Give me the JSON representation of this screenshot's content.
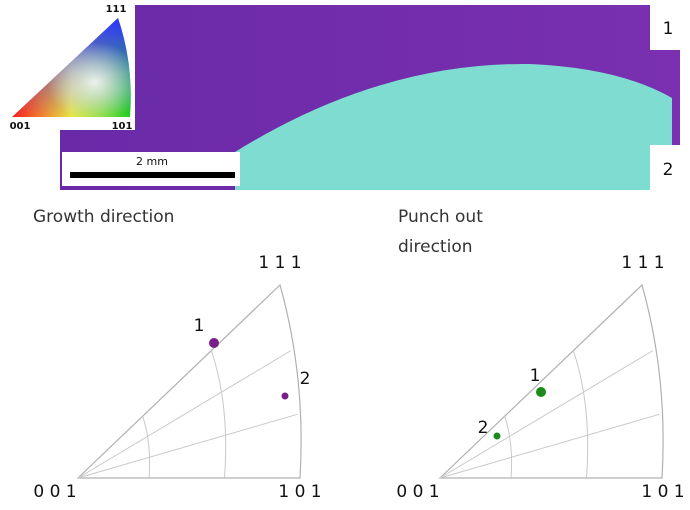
{
  "color_key": {
    "top": "111",
    "left": "001",
    "right": "101"
  },
  "scale_bar": "2 mm",
  "region_labels": [
    "1",
    "2"
  ],
  "panels": [
    {
      "title": "Growth direction",
      "corners": {
        "top": "1 1 1",
        "left": "0 0 1",
        "right": "1 0 1"
      },
      "point_labels": [
        "1",
        "2"
      ]
    },
    {
      "title": "Punch out direction",
      "corners": {
        "top": "1 1 1",
        "left": "0 0 1",
        "right": "1 0 1"
      },
      "point_labels": [
        "1",
        "2"
      ]
    }
  ]
}
